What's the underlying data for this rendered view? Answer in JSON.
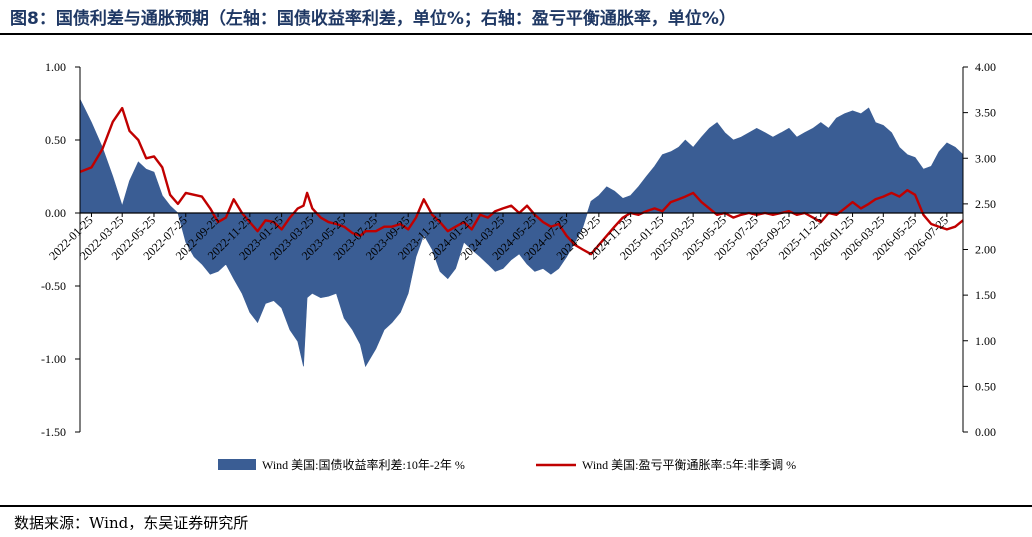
{
  "figure": {
    "title": "图8：国债利差与通胀预期（左轴：国债收益率利差，单位%；右轴：盈亏平衡通胀率，单位%）",
    "source": "数据来源：Wind，东吴证券研究所"
  },
  "chart_data": {
    "type": "area+line",
    "x_tick_labels": [
      "2022-01-25",
      "2022-03-25",
      "2022-05-25",
      "2022-07-25",
      "2022-09-25",
      "2022-11-25",
      "2023-01-25",
      "2023-03-25",
      "2023-05-25",
      "2023-07-25",
      "2023-09-25",
      "2023-11-25",
      "2024-01-25",
      "2024-03-25",
      "2024-05-25",
      "2024-07-25",
      "2024-09-25",
      "2024-11-25",
      "2025-01-25",
      "2025-03-25",
      "2025-05-25",
      "2025-07-25",
      "2025-09-25",
      "2025-11-25",
      "2026-01-25",
      "2026-03-25",
      "2026-05-25",
      "2026-07-25"
    ],
    "left_axis": {
      "ylim": [
        -1.5,
        1.0
      ],
      "ticks": [
        "1.00",
        "0.50",
        "0.00",
        "-0.50",
        "-1.00",
        "-1.50"
      ]
    },
    "right_axis": {
      "ylim": [
        0.0,
        4.0
      ],
      "ticks": [
        "4.00",
        "3.50",
        "3.00",
        "2.50",
        "2.00",
        "1.50",
        "1.00",
        "0.50",
        "0.00"
      ]
    },
    "legend": {
      "placement": "bottom"
    },
    "series": [
      {
        "name": "Wind 美国:国债收益率利差:10年-2年 %",
        "kind": "area",
        "axis": "left",
        "color": "#3a5d94",
        "x": [
          "2022-01-03",
          "2022-01-25",
          "2022-02-15",
          "2022-03-07",
          "2022-03-25",
          "2022-04-08",
          "2022-04-25",
          "2022-05-10",
          "2022-05-25",
          "2022-06-10",
          "2022-06-25",
          "2022-07-10",
          "2022-07-25",
          "2022-08-10",
          "2022-08-25",
          "2022-09-10",
          "2022-09-25",
          "2022-10-10",
          "2022-10-25",
          "2022-11-10",
          "2022-11-25",
          "2022-12-10",
          "2022-12-25",
          "2023-01-10",
          "2023-01-25",
          "2023-02-10",
          "2023-02-25",
          "2023-03-08",
          "2023-03-15",
          "2023-03-25",
          "2023-04-10",
          "2023-04-25",
          "2023-05-10",
          "2023-05-25",
          "2023-06-10",
          "2023-06-25",
          "2023-07-05",
          "2023-07-25",
          "2023-08-10",
          "2023-08-25",
          "2023-09-10",
          "2023-09-25",
          "2023-10-10",
          "2023-10-25",
          "2023-11-10",
          "2023-11-25",
          "2023-12-10",
          "2023-12-25",
          "2024-01-10",
          "2024-01-25",
          "2024-02-10",
          "2024-02-25",
          "2024-03-10",
          "2024-03-25",
          "2024-04-10",
          "2024-04-25",
          "2024-05-10",
          "2024-05-25",
          "2024-06-10",
          "2024-06-25",
          "2024-07-10",
          "2024-07-25",
          "2024-08-10",
          "2024-08-25",
          "2024-09-10",
          "2024-09-25",
          "2024-10-10",
          "2024-10-25",
          "2024-11-10",
          "2024-11-25",
          "2024-12-10",
          "2024-12-25",
          "2025-01-10",
          "2025-01-25",
          "2025-02-10",
          "2025-02-25",
          "2025-03-10",
          "2025-03-25",
          "2025-04-10",
          "2025-04-25",
          "2025-05-10",
          "2025-05-25",
          "2025-06-10",
          "2025-06-25",
          "2025-07-10",
          "2025-07-25",
          "2025-08-10",
          "2025-08-25",
          "2025-09-10",
          "2025-09-25",
          "2025-10-10",
          "2025-10-25",
          "2025-11-10",
          "2025-11-25",
          "2025-12-10",
          "2025-12-25",
          "2026-01-10",
          "2026-01-25",
          "2026-02-10",
          "2026-02-25",
          "2026-03-10",
          "2026-03-25",
          "2026-04-10",
          "2026-04-25",
          "2026-05-10",
          "2026-05-25",
          "2026-06-10",
          "2026-06-25",
          "2026-07-10",
          "2026-07-25",
          "2026-08-10",
          "2026-08-25"
        ],
        "y": [
          0.78,
          0.62,
          0.45,
          0.25,
          0.05,
          0.22,
          0.35,
          0.3,
          0.28,
          0.12,
          0.05,
          0.0,
          -0.2,
          -0.3,
          -0.35,
          -0.42,
          -0.4,
          -0.35,
          -0.45,
          -0.55,
          -0.68,
          -0.75,
          -0.62,
          -0.6,
          -0.65,
          -0.8,
          -0.88,
          -1.05,
          -0.58,
          -0.55,
          -0.58,
          -0.57,
          -0.55,
          -0.72,
          -0.8,
          -0.9,
          -1.05,
          -0.93,
          -0.8,
          -0.75,
          -0.68,
          -0.55,
          -0.3,
          -0.15,
          -0.25,
          -0.4,
          -0.45,
          -0.38,
          -0.2,
          -0.25,
          -0.3,
          -0.35,
          -0.4,
          -0.38,
          -0.32,
          -0.28,
          -0.35,
          -0.4,
          -0.38,
          -0.42,
          -0.38,
          -0.3,
          -0.2,
          -0.1,
          0.08,
          0.12,
          0.18,
          0.15,
          0.1,
          0.12,
          0.18,
          0.25,
          0.32,
          0.4,
          0.42,
          0.45,
          0.5,
          0.45,
          0.52,
          0.58,
          0.62,
          0.55,
          0.5,
          0.52,
          0.55,
          0.58,
          0.55,
          0.52,
          0.55,
          0.58,
          0.52,
          0.55,
          0.58,
          0.62,
          0.58,
          0.65,
          0.68,
          0.7,
          0.68,
          0.72,
          0.62,
          0.6,
          0.55,
          0.45,
          0.4,
          0.38,
          0.3,
          0.32,
          0.42,
          0.48,
          0.45,
          0.4
        ]
      },
      {
        "name": "Wind 美国:盈亏平衡通胀率:5年:非季调 %",
        "kind": "line",
        "axis": "right",
        "color": "#c00000",
        "x": [
          "2022-01-03",
          "2022-01-25",
          "2022-02-15",
          "2022-03-07",
          "2022-03-25",
          "2022-04-08",
          "2022-04-25",
          "2022-05-10",
          "2022-05-25",
          "2022-06-10",
          "2022-06-25",
          "2022-07-10",
          "2022-07-25",
          "2022-08-10",
          "2022-08-25",
          "2022-09-10",
          "2022-09-25",
          "2022-10-10",
          "2022-10-25",
          "2022-11-10",
          "2022-11-25",
          "2022-12-10",
          "2022-12-25",
          "2023-01-10",
          "2023-01-25",
          "2023-02-10",
          "2023-02-25",
          "2023-03-08",
          "2023-03-15",
          "2023-03-25",
          "2023-04-10",
          "2023-04-25",
          "2023-05-10",
          "2023-05-25",
          "2023-06-10",
          "2023-06-25",
          "2023-07-05",
          "2023-07-25",
          "2023-08-10",
          "2023-08-25",
          "2023-09-10",
          "2023-09-25",
          "2023-10-10",
          "2023-10-25",
          "2023-11-10",
          "2023-11-25",
          "2023-12-10",
          "2023-12-25",
          "2024-01-10",
          "2024-01-25",
          "2024-02-10",
          "2024-02-25",
          "2024-03-10",
          "2024-03-25",
          "2024-04-10",
          "2024-04-25",
          "2024-05-10",
          "2024-05-25",
          "2024-06-10",
          "2024-06-25",
          "2024-07-10",
          "2024-07-25",
          "2024-08-10",
          "2024-08-25",
          "2024-09-10",
          "2024-09-25",
          "2024-10-10",
          "2024-10-25",
          "2024-11-10",
          "2024-11-25",
          "2024-12-10",
          "2024-12-25",
          "2025-01-10",
          "2025-01-25",
          "2025-02-10",
          "2025-02-25",
          "2025-03-10",
          "2025-03-25",
          "2025-04-10",
          "2025-04-25",
          "2025-05-10",
          "2025-05-25",
          "2025-06-10",
          "2025-06-25",
          "2025-07-10",
          "2025-07-25",
          "2025-08-10",
          "2025-08-25",
          "2025-09-10",
          "2025-09-25",
          "2025-10-10",
          "2025-10-25",
          "2025-11-10",
          "2025-11-25",
          "2025-12-10",
          "2025-12-25",
          "2026-01-10",
          "2026-01-25",
          "2026-02-10",
          "2026-02-25",
          "2026-03-10",
          "2026-03-25",
          "2026-04-10",
          "2026-04-25",
          "2026-05-10",
          "2026-05-25",
          "2026-06-10",
          "2026-06-25",
          "2026-07-10",
          "2026-07-25",
          "2026-08-10",
          "2026-08-25"
        ],
        "y": [
          2.85,
          2.9,
          3.1,
          3.4,
          3.55,
          3.3,
          3.2,
          3.0,
          3.02,
          2.9,
          2.6,
          2.5,
          2.62,
          2.6,
          2.58,
          2.45,
          2.3,
          2.35,
          2.55,
          2.4,
          2.3,
          2.2,
          2.32,
          2.3,
          2.22,
          2.35,
          2.45,
          2.48,
          2.62,
          2.45,
          2.35,
          2.3,
          2.28,
          2.25,
          2.18,
          2.15,
          2.2,
          2.2,
          2.25,
          2.25,
          2.28,
          2.22,
          2.35,
          2.55,
          2.38,
          2.3,
          2.2,
          2.25,
          2.3,
          2.22,
          2.38,
          2.35,
          2.42,
          2.45,
          2.48,
          2.4,
          2.48,
          2.38,
          2.3,
          2.25,
          2.28,
          2.15,
          2.05,
          2.0,
          1.95,
          2.05,
          2.15,
          2.25,
          2.35,
          2.4,
          2.38,
          2.42,
          2.45,
          2.42,
          2.52,
          2.55,
          2.58,
          2.62,
          2.52,
          2.45,
          2.38,
          2.4,
          2.35,
          2.38,
          2.4,
          2.38,
          2.4,
          2.38,
          2.4,
          2.42,
          2.38,
          2.4,
          2.35,
          2.3,
          2.4,
          2.38,
          2.45,
          2.52,
          2.45,
          2.5,
          2.55,
          2.58,
          2.62,
          2.58,
          2.65,
          2.6,
          2.38,
          2.28,
          2.25,
          2.22,
          2.25,
          2.32
        ]
      }
    ]
  }
}
